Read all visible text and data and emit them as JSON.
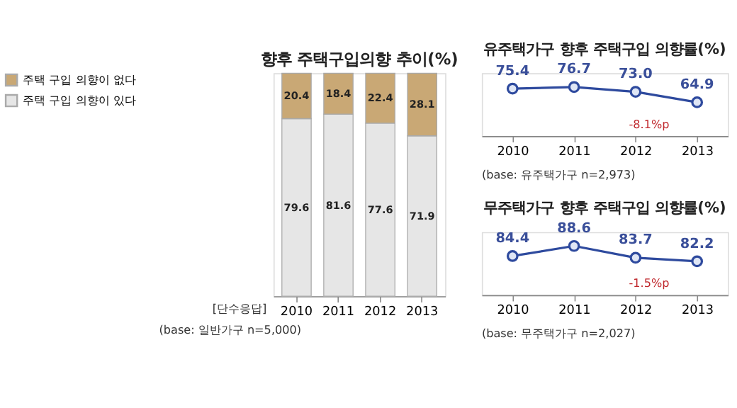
{
  "chart_data": [
    {
      "type": "bar",
      "title": "향후 주택구입의향 추이(%)",
      "stacked": true,
      "categories": [
        "2010",
        "2011",
        "2012",
        "2013"
      ],
      "series": [
        {
          "name": "주택 구입 의향이 있다",
          "color": "#e6e6e6",
          "values": [
            79.6,
            81.6,
            77.6,
            71.9
          ]
        },
        {
          "name": "주택 구입 의향이 없다",
          "color": "#c9a875",
          "values": [
            20.4,
            18.4,
            22.4,
            28.1
          ]
        }
      ],
      "data_labels": true,
      "legend": "left",
      "grid": false,
      "annotations": [
        "[단수응답]",
        "(base: 일반가구 n=5,000)"
      ]
    },
    {
      "type": "line",
      "title": "유주택가구 향후 주택구입 의향률(%)",
      "categories": [
        "2010",
        "2011",
        "2012",
        "2013"
      ],
      "series": [
        {
          "color": "#2e4a9e",
          "values": [
            75.4,
            76.7,
            73.0,
            64.9
          ],
          "value_labels": [
            "75.4",
            "76.7",
            "73.0",
            "64.9"
          ]
        }
      ],
      "marker": "circle",
      "line_style": "solid",
      "legend": false,
      "grid": false,
      "annotations": [
        "-8.1%p",
        "(base: 유주택가구 n=2,973)"
      ]
    },
    {
      "type": "line",
      "title": "무주택가구 향후 주택구입 의향률(%)",
      "categories": [
        "2010",
        "2011",
        "2012",
        "2013"
      ],
      "series": [
        {
          "color": "#2e4a9e",
          "values": [
            84.4,
            88.6,
            83.7,
            82.2
          ],
          "value_labels": [
            "84.4",
            "88.6",
            "83.7",
            "82.2"
          ]
        }
      ],
      "marker": "circle",
      "line_style": "solid",
      "legend": false,
      "grid": false,
      "annotations": [
        "-1.5%p",
        "(base: 무주택가구 n=2,027)"
      ]
    }
  ]
}
